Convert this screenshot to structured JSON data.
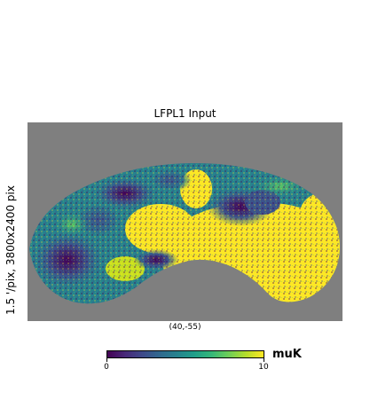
{
  "title": "LFPL1 Input",
  "ylabel": "1.5 '/pix,   3800x2400 pix",
  "center_label": "(40,-55)",
  "colorbar": {
    "min_label": "0",
    "max_label": "10",
    "unit": "muK",
    "colormap": "viridis"
  },
  "colors": {
    "background_gray": "#7f7f7f",
    "saturated_yellow": "#fde725"
  }
}
